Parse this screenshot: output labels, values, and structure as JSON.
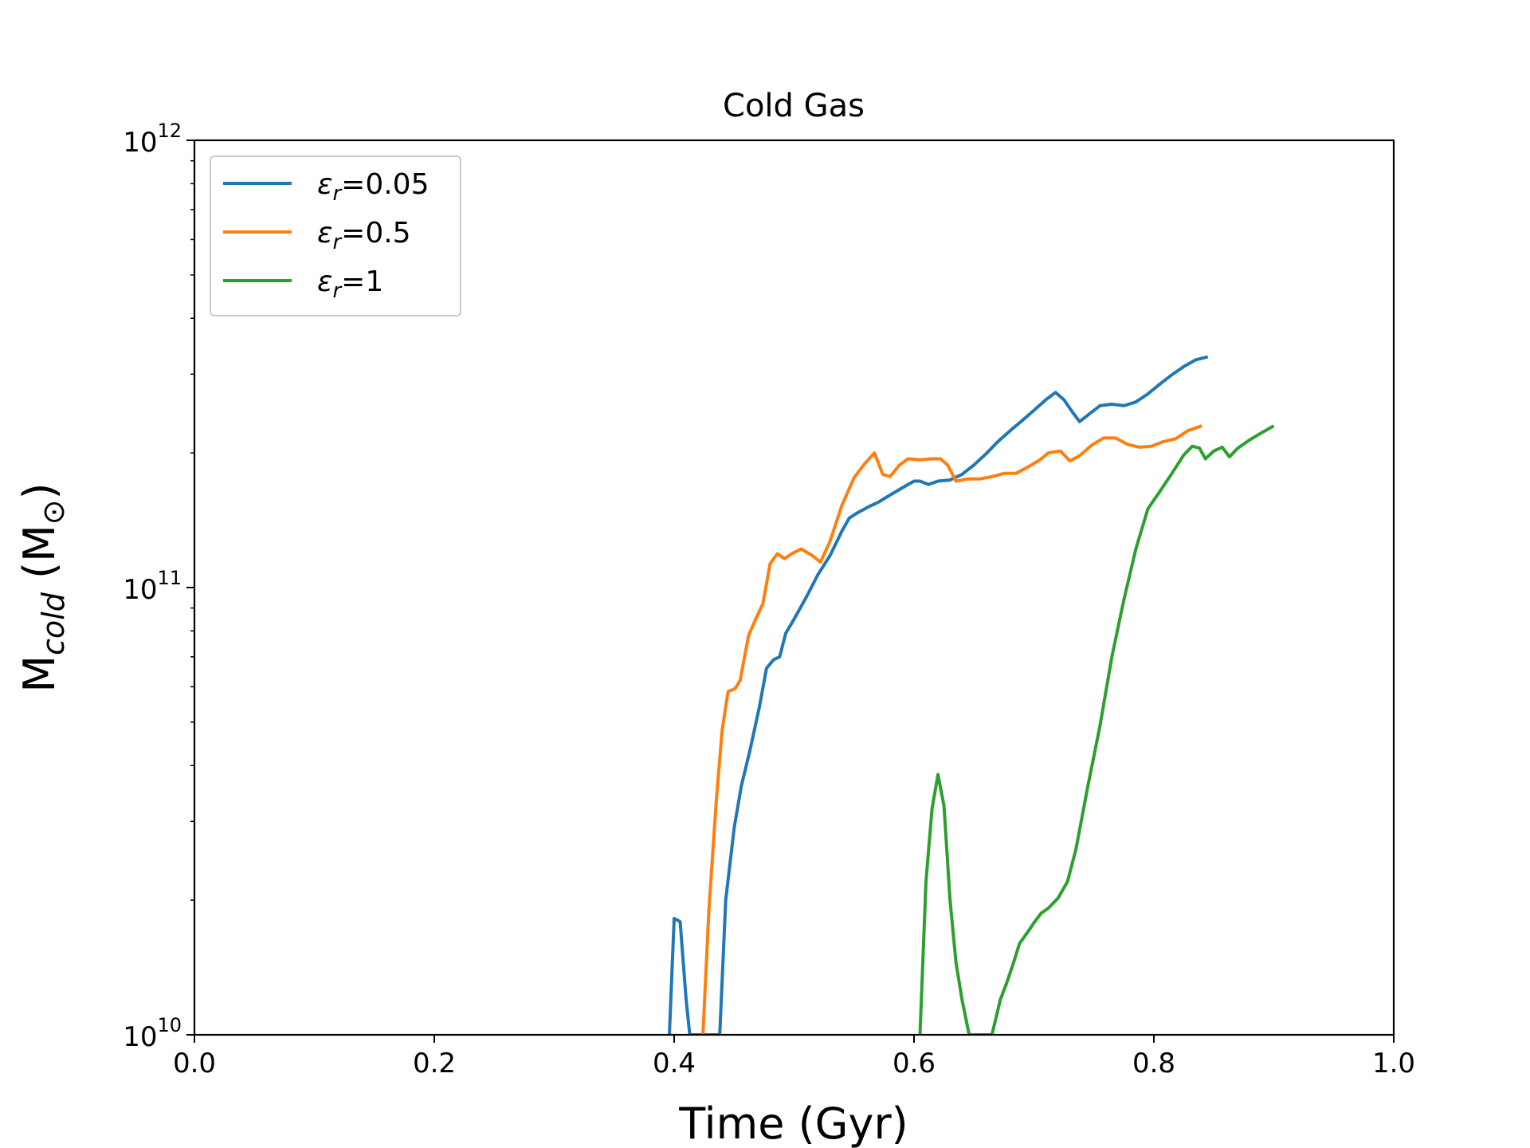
{
  "chart_data": {
    "type": "line",
    "title": "Cold Gas",
    "xlabel": "Time (Gyr)",
    "ylabel": {
      "base": "M",
      "sub": "cold",
      "unit_open": " (M",
      "unit_sub": "⊙",
      "unit_close": ")"
    },
    "xlim": [
      0.0,
      1.0
    ],
    "ylim": [
      10000000000.0,
      1000000000000.0
    ],
    "yscale": "log",
    "xticks": [
      "0.0",
      "0.2",
      "0.4",
      "0.6",
      "0.8",
      "1.0"
    ],
    "yticks": [
      {
        "base": "10",
        "exp": "10"
      },
      {
        "base": "10",
        "exp": "11"
      },
      {
        "base": "10",
        "exp": "12"
      }
    ],
    "legend_position": "top-left",
    "series": [
      {
        "label_symbol": "ε",
        "label_sub": "r",
        "label_value": "=0.05",
        "color": "#1f77b4",
        "points": [
          [
            0.396,
            10000000000.0
          ],
          [
            0.4,
            18200000000.0
          ],
          [
            0.405,
            17900000000.0
          ],
          [
            0.41,
            12000000000.0
          ],
          [
            0.413,
            10000000000.0
          ],
          [
            0.438,
            10000000000.0
          ],
          [
            0.443,
            20000000000.0
          ],
          [
            0.45,
            29000000000.0
          ],
          [
            0.456,
            36000000000.0
          ],
          [
            0.463,
            43000000000.0
          ],
          [
            0.471,
            54000000000.0
          ],
          [
            0.477,
            66000000000.0
          ],
          [
            0.483,
            69000000000.0
          ],
          [
            0.488,
            70000000000.0
          ],
          [
            0.493,
            79000000000.0
          ],
          [
            0.5,
            85000000000.0
          ],
          [
            0.51,
            95000000000.0
          ],
          [
            0.52,
            107000000000.0
          ],
          [
            0.53,
            118000000000.0
          ],
          [
            0.54,
            134000000000.0
          ],
          [
            0.546,
            143000000000.0
          ],
          [
            0.553,
            147000000000.0
          ],
          [
            0.563,
            152000000000.0
          ],
          [
            0.57,
            155000000000.0
          ],
          [
            0.58,
            161000000000.0
          ],
          [
            0.59,
            167000000000.0
          ],
          [
            0.6,
            173000000000.0
          ],
          [
            0.605,
            173000000000.0
          ],
          [
            0.612,
            170000000000.0
          ],
          [
            0.62,
            173000000000.0
          ],
          [
            0.63,
            174000000000.0
          ],
          [
            0.64,
            179000000000.0
          ],
          [
            0.65,
            188000000000.0
          ],
          [
            0.66,
            199000000000.0
          ],
          [
            0.67,
            212000000000.0
          ],
          [
            0.68,
            224000000000.0
          ],
          [
            0.69,
            236000000000.0
          ],
          [
            0.7,
            249000000000.0
          ],
          [
            0.71,
            263000000000.0
          ],
          [
            0.718,
            273000000000.0
          ],
          [
            0.725,
            263000000000.0
          ],
          [
            0.732,
            247000000000.0
          ],
          [
            0.738,
            235000000000.0
          ],
          [
            0.745,
            243000000000.0
          ],
          [
            0.755,
            255000000000.0
          ],
          [
            0.765,
            257000000000.0
          ],
          [
            0.775,
            255000000000.0
          ],
          [
            0.785,
            260000000000.0
          ],
          [
            0.795,
            271000000000.0
          ],
          [
            0.805,
            285000000000.0
          ],
          [
            0.815,
            299000000000.0
          ],
          [
            0.825,
            312000000000.0
          ],
          [
            0.835,
            323000000000.0
          ],
          [
            0.845,
            328000000000.0
          ]
        ]
      },
      {
        "label_symbol": "ε",
        "label_sub": "r",
        "label_value": "=0.5",
        "color": "#ff7f0e",
        "points": [
          [
            0.424,
            10000000000.0
          ],
          [
            0.429,
            19000000000.0
          ],
          [
            0.435,
            33000000000.0
          ],
          [
            0.44,
            48000000000.0
          ],
          [
            0.445,
            58500000000.0
          ],
          [
            0.451,
            59500000000.0
          ],
          [
            0.455,
            62000000000.0
          ],
          [
            0.462,
            78000000000.0
          ],
          [
            0.468,
            85000000000.0
          ],
          [
            0.474,
            92000000000.0
          ],
          [
            0.48,
            113000000000.0
          ],
          [
            0.486,
            119000000000.0
          ],
          [
            0.492,
            116000000000.0
          ],
          [
            0.498,
            119000000000.0
          ],
          [
            0.506,
            122000000000.0
          ],
          [
            0.515,
            118000000000.0
          ],
          [
            0.522,
            114000000000.0
          ],
          [
            0.53,
            127000000000.0
          ],
          [
            0.54,
            153000000000.0
          ],
          [
            0.55,
            176000000000.0
          ],
          [
            0.558,
            188000000000.0
          ],
          [
            0.567,
            200000000000.0
          ],
          [
            0.574,
            179000000000.0
          ],
          [
            0.58,
            177000000000.0
          ],
          [
            0.588,
            188000000000.0
          ],
          [
            0.595,
            194000000000.0
          ],
          [
            0.605,
            193000000000.0
          ],
          [
            0.615,
            194000000000.0
          ],
          [
            0.622,
            194000000000.0
          ],
          [
            0.628,
            188000000000.0
          ],
          [
            0.635,
            173000000000.0
          ],
          [
            0.645,
            175000000000.0
          ],
          [
            0.655,
            175000000000.0
          ],
          [
            0.665,
            177000000000.0
          ],
          [
            0.675,
            180000000000.0
          ],
          [
            0.685,
            180000000000.0
          ],
          [
            0.695,
            186000000000.0
          ],
          [
            0.705,
            193000000000.0
          ],
          [
            0.712,
            200000000000.0
          ],
          [
            0.722,
            202000000000.0
          ],
          [
            0.73,
            192000000000.0
          ],
          [
            0.738,
            197000000000.0
          ],
          [
            0.748,
            208000000000.0
          ],
          [
            0.758,
            216000000000.0
          ],
          [
            0.768,
            216000000000.0
          ],
          [
            0.778,
            209000000000.0
          ],
          [
            0.788,
            206000000000.0
          ],
          [
            0.798,
            207000000000.0
          ],
          [
            0.808,
            212000000000.0
          ],
          [
            0.818,
            215000000000.0
          ],
          [
            0.828,
            224000000000.0
          ],
          [
            0.84,
            230000000000.0
          ]
        ]
      },
      {
        "label_symbol": "ε",
        "label_sub": "r",
        "label_value": "=1",
        "color": "#2ca02c",
        "points": [
          [
            0.605,
            10000000000.0
          ],
          [
            0.61,
            22000000000.0
          ],
          [
            0.615,
            32000000000.0
          ],
          [
            0.62,
            38200000000.0
          ],
          [
            0.625,
            32500000000.0
          ],
          [
            0.63,
            20000000000.0
          ],
          [
            0.635,
            14500000000.0
          ],
          [
            0.64,
            12000000000.0
          ],
          [
            0.646,
            10000000000.0
          ],
          [
            0.665,
            10000000000.0
          ],
          [
            0.672,
            12000000000.0
          ],
          [
            0.677,
            13000000000.0
          ],
          [
            0.683,
            14500000000.0
          ],
          [
            0.688,
            16000000000.0
          ],
          [
            0.695,
            17000000000.0
          ],
          [
            0.7,
            17800000000.0
          ],
          [
            0.706,
            18700000000.0
          ],
          [
            0.712,
            19200000000.0
          ],
          [
            0.72,
            20200000000.0
          ],
          [
            0.728,
            22000000000.0
          ],
          [
            0.735,
            26000000000.0
          ],
          [
            0.745,
            36000000000.0
          ],
          [
            0.755,
            49000000000.0
          ],
          [
            0.765,
            70000000000.0
          ],
          [
            0.775,
            94000000000.0
          ],
          [
            0.785,
            122000000000.0
          ],
          [
            0.795,
            150000000000.0
          ],
          [
            0.805,
            164000000000.0
          ],
          [
            0.815,
            180000000000.0
          ],
          [
            0.825,
            198000000000.0
          ],
          [
            0.832,
            207000000000.0
          ],
          [
            0.838,
            205000000000.0
          ],
          [
            0.843,
            194000000000.0
          ],
          [
            0.85,
            202000000000.0
          ],
          [
            0.857,
            206000000000.0
          ],
          [
            0.863,
            196000000000.0
          ],
          [
            0.87,
            205000000000.0
          ],
          [
            0.88,
            214000000000.0
          ],
          [
            0.89,
            222000000000.0
          ],
          [
            0.9,
            230000000000.0
          ]
        ]
      }
    ]
  }
}
